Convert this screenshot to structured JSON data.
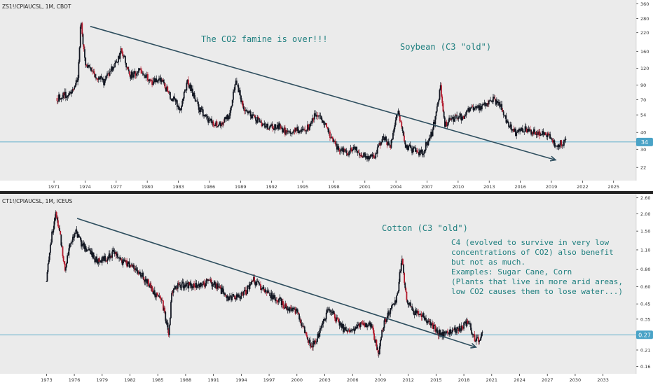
{
  "colors": {
    "background": "#ebebeb",
    "axis_background": "#ffffff",
    "separator": "#222222",
    "candle": "#131722",
    "candle_down": "#b2182b",
    "trendline": "#2f4f5f",
    "price_line": "#4aa3c7",
    "annotation": "#1f7f7f",
    "tick_text": "#333333",
    "badge": "#4aa3c7"
  },
  "chart_data": [
    {
      "type": "line",
      "symbol_label": "ZS1!/CPIAUCSL, 1M, CBOT",
      "log_scale": true,
      "xlim": [
        1969.0,
        2026.0
      ],
      "ylim": [
        18.0,
        380.0
      ],
      "x_ticks": [
        "1971",
        "1974",
        "1977",
        "1980",
        "1983",
        "1986",
        "1989",
        "1992",
        "1995",
        "1998",
        "2001",
        "2004",
        "2007",
        "2010",
        "2013",
        "2016",
        "2019",
        "2022",
        "2025"
      ],
      "y_ticks": [
        360,
        280,
        220,
        160,
        120,
        90,
        70,
        54,
        40,
        30,
        22
      ],
      "current_value": 34,
      "current_label": "34",
      "annotations": [
        "The CO2 famine is over!!!",
        "Soybean (C3 \"old\")"
      ],
      "trendline": {
        "x": [
          1974.5,
          2019.4
        ],
        "y": [
          245,
          25
        ]
      },
      "anchors": {
        "x": [
          1971.3,
          1972.5,
          1973.3,
          1973.6,
          1974.0,
          1974.8,
          1975.8,
          1977.2,
          1977.5,
          1978.3,
          1979.3,
          1980.5,
          1981.2,
          1982.4,
          1983.2,
          1983.9,
          1985.0,
          1986.3,
          1987.0,
          1988.0,
          1988.5,
          1989.3,
          1990.2,
          1991.5,
          1992.8,
          1993.4,
          1994.5,
          1995.2,
          1996.3,
          1997.0,
          1998.0,
          1999.2,
          2000.0,
          2001.3,
          2002.0,
          2002.7,
          2003.5,
          2004.2,
          2004.8,
          2005.5,
          2006.5,
          2007.5,
          2008.3,
          2008.7,
          2009.2,
          2010.0,
          2010.6,
          2011.2,
          2012.0,
          2012.6,
          2013.3,
          2014.0,
          2014.6,
          2015.5,
          2016.5,
          2017.5,
          2018.5,
          2019.3,
          2020.0,
          2020.4
        ],
        "y": [
          72,
          78,
          100,
          280,
          130,
          110,
          95,
          140,
          170,
          105,
          115,
          95,
          100,
          72,
          60,
          95,
          60,
          46,
          46,
          55,
          100,
          60,
          52,
          44,
          44,
          40,
          42,
          40,
          55,
          48,
          33,
          28,
          30,
          26,
          27,
          37,
          32,
          60,
          33,
          30,
          28,
          40,
          85,
          45,
          50,
          52,
          52,
          62,
          60,
          64,
          70,
          65,
          50,
          40,
          42,
          40,
          39,
          33,
          33,
          34
        ]
      }
    },
    {
      "type": "line",
      "symbol_label": "CT1!/CPIAUCSL, 1M, ICEUS",
      "log_scale": true,
      "xlim": [
        1971.5,
        2034.5
      ],
      "ylim": [
        0.145,
        2.65
      ],
      "x_ticks": [
        "1973",
        "1976",
        "1979",
        "1982",
        "1985",
        "1988",
        "1991",
        "1994",
        "1997",
        "2000",
        "2003",
        "2006",
        "2009",
        "2012",
        "2015",
        "2018",
        "2021",
        "2024",
        "2027",
        "2030",
        "2033"
      ],
      "y_ticks": [
        2.6,
        2.0,
        1.5,
        1.1,
        0.8,
        0.6,
        0.45,
        0.35,
        0.27,
        0.21,
        0.16
      ],
      "current_value": 0.27,
      "current_label": "0.27",
      "annotations": [
        "Cotton (C3 \"old\")",
        "C4 (evolved to survive in very low",
        "concentrations of CO2) also benefit",
        "but not as much.",
        "Examples: Sugar Cane, Corn",
        "(Plants that live in more arid areas,",
        "low CO2 causes them to lose water...)"
      ],
      "trendline": {
        "x": [
          1976.3,
          2019.3
        ],
        "y": [
          1.85,
          0.22
        ]
      },
      "anchors": {
        "x": [
          1973.0,
          1973.4,
          1974.0,
          1974.4,
          1975.0,
          1975.5,
          1976.2,
          1976.8,
          1977.5,
          1978.5,
          1979.5,
          1980.2,
          1981.0,
          1982.0,
          1983.5,
          1985.5,
          1986.2,
          1986.5,
          1987.0,
          1988.0,
          1989.0,
          1990.5,
          1991.5,
          1992.5,
          1993.5,
          1994.5,
          1995.2,
          1996.5,
          1998.0,
          1999.0,
          2000.0,
          2001.5,
          2002.0,
          2002.6,
          2003.5,
          2004.2,
          2005.0,
          2006.0,
          2007.0,
          2008.0,
          2008.8,
          2009.2,
          2010.0,
          2010.8,
          2011.3,
          2011.8,
          2012.5,
          2013.5,
          2014.5,
          2015.5,
          2016.5,
          2017.5,
          2018.5,
          2019.3,
          2020.0
        ],
        "y": [
          0.65,
          1.2,
          2.0,
          1.5,
          0.8,
          1.2,
          1.5,
          1.2,
          1.1,
          0.9,
          0.95,
          1.05,
          0.9,
          0.85,
          0.7,
          0.45,
          0.27,
          0.55,
          0.6,
          0.62,
          0.6,
          0.65,
          0.6,
          0.5,
          0.5,
          0.55,
          0.68,
          0.55,
          0.48,
          0.42,
          0.4,
          0.22,
          0.24,
          0.3,
          0.42,
          0.35,
          0.3,
          0.3,
          0.32,
          0.32,
          0.2,
          0.3,
          0.4,
          0.5,
          0.95,
          0.5,
          0.4,
          0.37,
          0.32,
          0.27,
          0.28,
          0.3,
          0.33,
          0.24,
          0.27
        ]
      }
    }
  ]
}
